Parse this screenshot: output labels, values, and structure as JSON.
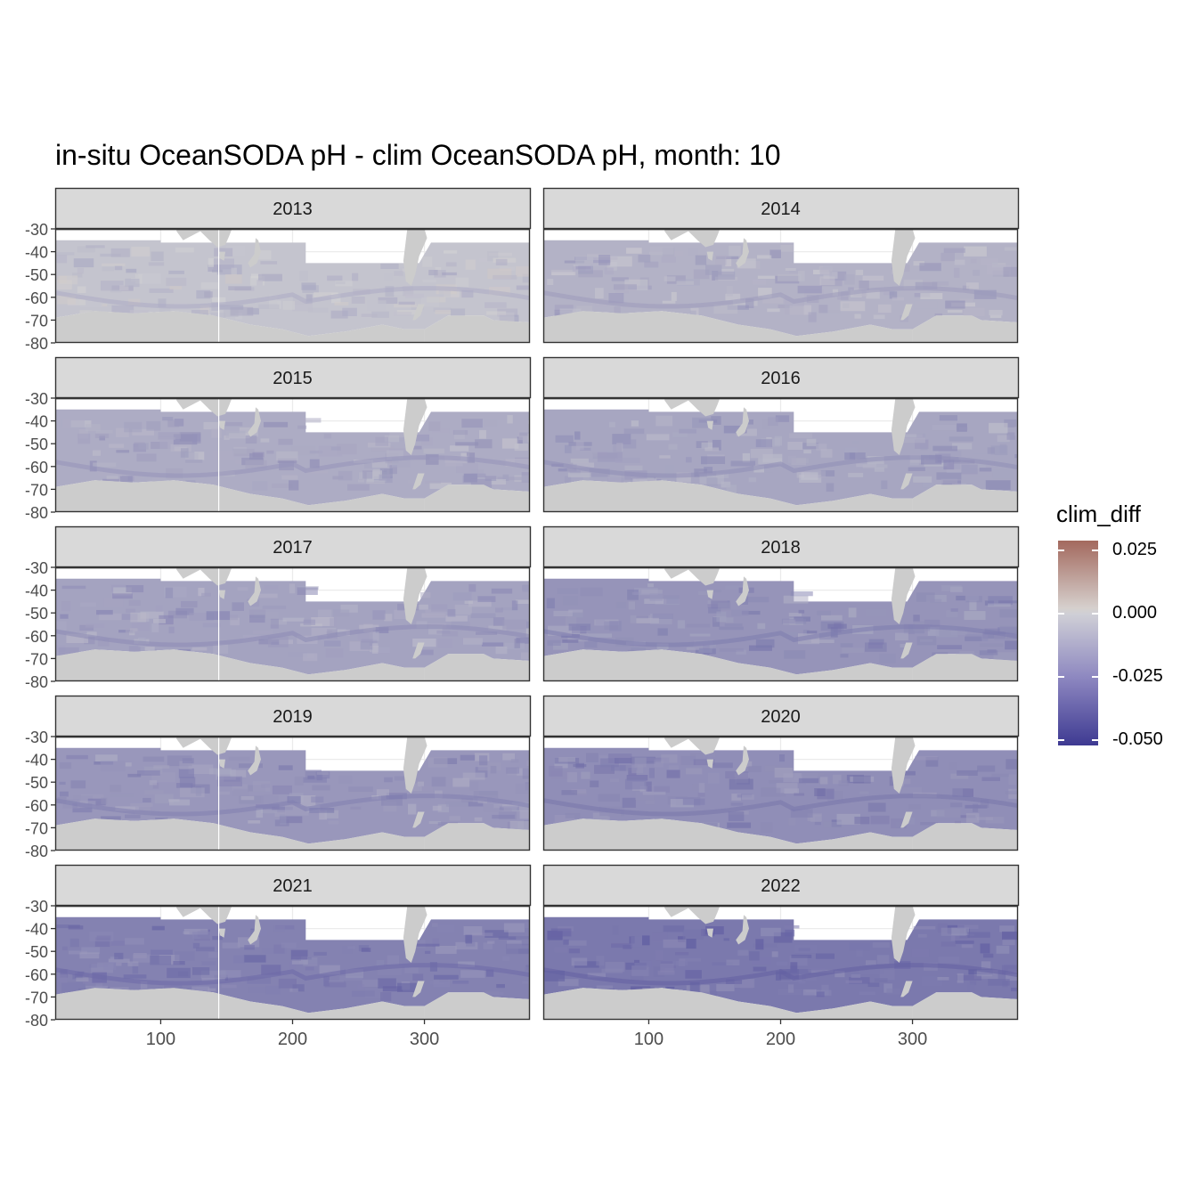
{
  "title": "in-situ OceanSODA pH - clim OceanSODA pH, month: 10",
  "chart_data": {
    "type": "heatmap",
    "title": "in-situ OceanSODA pH - clim OceanSODA pH, month: 10",
    "facets": [
      "2013",
      "2014",
      "2015",
      "2016",
      "2017",
      "2018",
      "2019",
      "2020",
      "2021",
      "2022"
    ],
    "facet_mean_clim_diff": {
      "2013": -0.006,
      "2014": -0.012,
      "2015": -0.014,
      "2016": -0.016,
      "2017": -0.017,
      "2018": -0.022,
      "2019": -0.021,
      "2020": -0.024,
      "2021": -0.028,
      "2022": -0.031
    },
    "x_ticks": [
      100,
      200,
      300
    ],
    "x_tick_labels": [
      "100",
      "200",
      "300"
    ],
    "xlim": [
      20,
      380
    ],
    "y_ticks": [
      -30,
      -40,
      -50,
      -60,
      -70,
      -80
    ],
    "y_tick_labels": [
      "-30",
      "-40",
      "-50",
      "-60",
      "-70",
      "-80"
    ],
    "ylim": [
      -80,
      -30
    ],
    "data_region_lat": [
      -84,
      -35
    ],
    "legend": {
      "title": "clim_diff",
      "breaks": [
        0.025,
        0.0,
        -0.025,
        -0.05
      ],
      "labels": [
        "0.025",
        "0.000",
        "-0.025",
        "-0.050"
      ],
      "limits": [
        -0.052,
        0.029
      ],
      "colors": {
        "high": "#A3695E",
        "mid": "#D6D6D6",
        "low": "#3E3A92"
      }
    },
    "land_color": "#CCCCCC",
    "strip_fill": "#D9D9D9",
    "grid": true,
    "legend_position": "right"
  }
}
